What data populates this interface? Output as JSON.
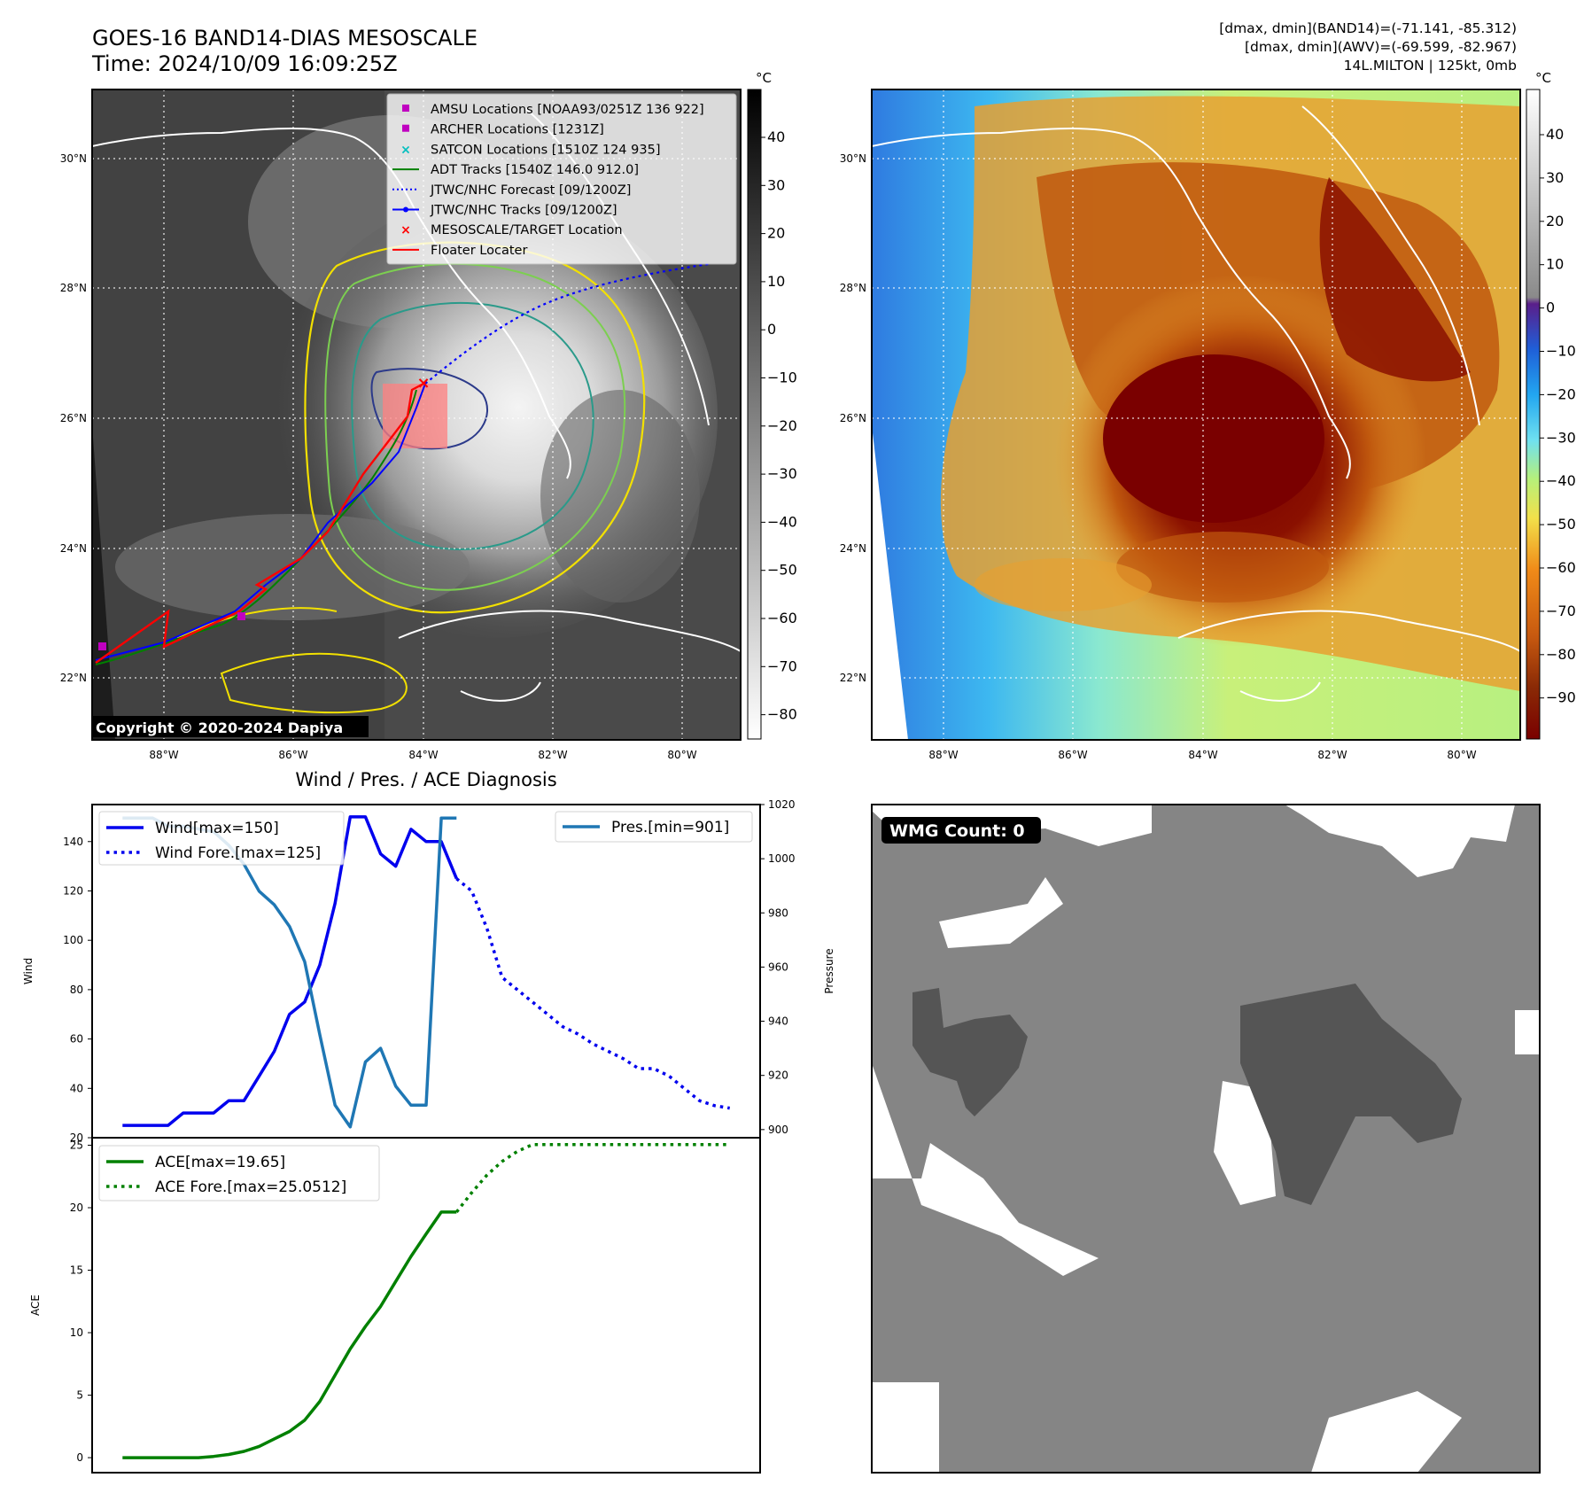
{
  "header": {
    "title_line1": "GOES-16 BAND14-DIAS MESOSCALE",
    "title_line2": "Time: 2024/10/09 16:09:25Z",
    "info_line1": "[dmax, dmin](BAND14)=(-71.141, -85.312)",
    "info_line2": "[dmax, dmin](AWV)=(-69.599, -82.967)",
    "info_line3": "14L.MILTON | 125kt, 0mb"
  },
  "maps": {
    "lat_labels": [
      "30°N",
      "28°N",
      "26°N",
      "24°N",
      "22°N"
    ],
    "lon_labels": [
      "88°W",
      "86°W",
      "84°W",
      "82°W",
      "80°W"
    ],
    "copyright": "Copyright © 2020-2024 Dapiya",
    "colorbar_unit": "°C",
    "colorbar_left_ticks": [
      "40",
      "30",
      "20",
      "10",
      "0",
      "−10",
      "−20",
      "−30",
      "−40",
      "−50",
      "−60",
      "−70",
      "−80"
    ],
    "colorbar_right_ticks": [
      "40",
      "30",
      "20",
      "10",
      "0",
      "−10",
      "−20",
      "−30",
      "−40",
      "−50",
      "−60",
      "−70",
      "−80",
      "−90"
    ],
    "legend": [
      {
        "label": "AMSU Locations [NOAA93/0251Z 136 922]",
        "marker": "square",
        "color": "#c000c0"
      },
      {
        "label": "ARCHER Locations [1231Z]",
        "marker": "square",
        "color": "#c000c0"
      },
      {
        "label": "SATCON Locations [1510Z 124 935]",
        "marker": "x",
        "color": "#00bfbf"
      },
      {
        "label": "ADT Tracks [1540Z 146.0 912.0]",
        "marker": "line",
        "color": "#008000"
      },
      {
        "label": "JTWC/NHC Forecast [09/1200Z]",
        "marker": "dotted",
        "color": "#0000ff"
      },
      {
        "label": "JTWC/NHC Tracks [09/1200Z]",
        "marker": "dotline",
        "color": "#0000ff"
      },
      {
        "label": "MESOSCALE/TARGET Location",
        "marker": "x",
        "color": "#ff0000"
      },
      {
        "label": "Floater Locater",
        "marker": "line",
        "color": "#ff0000"
      }
    ]
  },
  "wmg": {
    "label": "WMG Count: 0"
  },
  "chart_data": [
    {
      "type": "line",
      "title": "Wind / Pres. / ACE Diagnosis",
      "ylabel": "Wind",
      "y2label": "Pressure",
      "ylim": [
        20,
        155
      ],
      "y2lim": [
        897,
        1020
      ],
      "xlim": [
        -2,
        42
      ],
      "wind_ticks": [
        20,
        40,
        60,
        80,
        100,
        120,
        140
      ],
      "pres_ticks": [
        900,
        920,
        940,
        960,
        980,
        1000,
        1020
      ],
      "legend_left": [
        "Wind[max=150]",
        "Wind Fore.[max=125]"
      ],
      "legend_right": [
        "Pres.[min=901]"
      ],
      "series": [
        {
          "name": "Wind[max=150]",
          "axis": "left",
          "style": "solid",
          "color": "#0000ee",
          "x": [
            0,
            1,
            2,
            3,
            4,
            5,
            6,
            7,
            8,
            9,
            10,
            11,
            12,
            13,
            14,
            15,
            16,
            17,
            18,
            19,
            20,
            21,
            22
          ],
          "values": [
            25,
            25,
            25,
            25,
            30,
            30,
            30,
            35,
            35,
            45,
            55,
            70,
            75,
            90,
            115,
            150,
            150,
            135,
            130,
            145,
            140,
            140,
            125
          ]
        },
        {
          "name": "Wind Fore.[max=125]",
          "axis": "left",
          "style": "dotted",
          "color": "#0000ee",
          "x": [
            22,
            23,
            24,
            25,
            26,
            27,
            28,
            29,
            30,
            31,
            32,
            33,
            34,
            35,
            36,
            37,
            38,
            39,
            40
          ],
          "values": [
            125,
            120,
            105,
            85,
            80,
            75,
            70,
            65,
            62,
            58,
            55,
            52,
            48,
            48,
            45,
            40,
            35,
            33,
            32
          ]
        },
        {
          "name": "Pres.[min=901]",
          "axis": "right",
          "style": "solid",
          "color": "#1f77b4",
          "x": [
            0,
            1,
            2,
            3,
            4,
            5,
            6,
            7,
            8,
            9,
            10,
            11,
            12,
            13,
            14,
            15,
            16,
            17,
            18,
            19,
            20,
            21,
            22
          ],
          "values": [
            1015,
            1015,
            1015,
            1012,
            1012,
            1011,
            1010,
            1005,
            998,
            988,
            983,
            975,
            962,
            935,
            909,
            901,
            925,
            930,
            916,
            909,
            909,
            1015,
            1015
          ]
        }
      ]
    },
    {
      "type": "line",
      "ylabel": "ACE",
      "ylim": [
        -1.2,
        25.6
      ],
      "xlim": [
        -2,
        42
      ],
      "ticks": [
        0,
        5,
        10,
        15,
        20,
        25
      ],
      "legend": [
        "ACE[max=19.65]",
        "ACE Fore.[max=25.0512]"
      ],
      "series": [
        {
          "name": "ACE[max=19.65]",
          "style": "solid",
          "color": "#008000",
          "x": [
            0,
            1,
            2,
            3,
            4,
            5,
            6,
            7,
            8,
            9,
            10,
            11,
            12,
            13,
            14,
            15,
            16,
            17,
            18,
            19,
            20,
            21,
            22
          ],
          "values": [
            0,
            0,
            0,
            0,
            0,
            0,
            0.1,
            0.25,
            0.5,
            0.9,
            1.5,
            2.1,
            3.0,
            4.5,
            6.6,
            8.7,
            10.5,
            12.1,
            14.1,
            16.1,
            17.9,
            19.65,
            19.65
          ]
        },
        {
          "name": "ACE Fore.[max=25.0512]",
          "style": "dotted",
          "color": "#008000",
          "x": [
            22,
            23,
            24,
            25,
            26,
            27,
            28,
            29,
            30,
            31,
            32,
            33,
            34,
            35,
            36,
            37,
            38,
            39,
            40
          ],
          "values": [
            19.65,
            21.2,
            22.6,
            23.7,
            24.5,
            25.05,
            25.05,
            25.05,
            25.05,
            25.05,
            25.05,
            25.05,
            25.05,
            25.05,
            25.05,
            25.05,
            25.05,
            25.05,
            25.05
          ]
        }
      ]
    }
  ]
}
